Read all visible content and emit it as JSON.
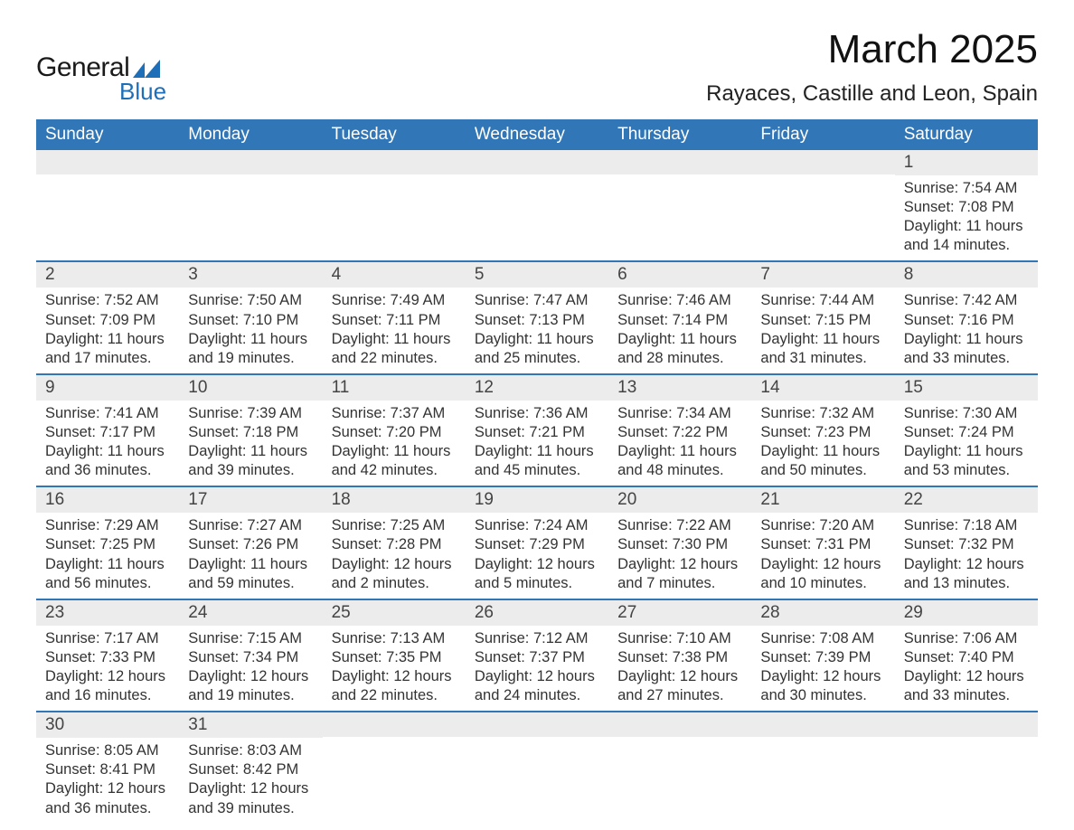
{
  "logo": {
    "text1": "General",
    "text2": "Blue",
    "shape_color": "#1e6fb8"
  },
  "title": "March 2025",
  "location": "Rayaces, Castille and Leon, Spain",
  "colors": {
    "header_bg": "#3176b7",
    "header_text": "#ffffff",
    "row_divider": "#3176b7",
    "daynum_bg": "#ececec",
    "text": "#333333",
    "background": "#ffffff"
  },
  "weekdays": [
    "Sunday",
    "Monday",
    "Tuesday",
    "Wednesday",
    "Thursday",
    "Friday",
    "Saturday"
  ],
  "weeks": [
    [
      {
        "day": "",
        "sunrise": "",
        "sunset": "",
        "daylight": ""
      },
      {
        "day": "",
        "sunrise": "",
        "sunset": "",
        "daylight": ""
      },
      {
        "day": "",
        "sunrise": "",
        "sunset": "",
        "daylight": ""
      },
      {
        "day": "",
        "sunrise": "",
        "sunset": "",
        "daylight": ""
      },
      {
        "day": "",
        "sunrise": "",
        "sunset": "",
        "daylight": ""
      },
      {
        "day": "",
        "sunrise": "",
        "sunset": "",
        "daylight": ""
      },
      {
        "day": "1",
        "sunrise": "Sunrise: 7:54 AM",
        "sunset": "Sunset: 7:08 PM",
        "daylight": "Daylight: 11 hours and 14 minutes."
      }
    ],
    [
      {
        "day": "2",
        "sunrise": "Sunrise: 7:52 AM",
        "sunset": "Sunset: 7:09 PM",
        "daylight": "Daylight: 11 hours and 17 minutes."
      },
      {
        "day": "3",
        "sunrise": "Sunrise: 7:50 AM",
        "sunset": "Sunset: 7:10 PM",
        "daylight": "Daylight: 11 hours and 19 minutes."
      },
      {
        "day": "4",
        "sunrise": "Sunrise: 7:49 AM",
        "sunset": "Sunset: 7:11 PM",
        "daylight": "Daylight: 11 hours and 22 minutes."
      },
      {
        "day": "5",
        "sunrise": "Sunrise: 7:47 AM",
        "sunset": "Sunset: 7:13 PM",
        "daylight": "Daylight: 11 hours and 25 minutes."
      },
      {
        "day": "6",
        "sunrise": "Sunrise: 7:46 AM",
        "sunset": "Sunset: 7:14 PM",
        "daylight": "Daylight: 11 hours and 28 minutes."
      },
      {
        "day": "7",
        "sunrise": "Sunrise: 7:44 AM",
        "sunset": "Sunset: 7:15 PM",
        "daylight": "Daylight: 11 hours and 31 minutes."
      },
      {
        "day": "8",
        "sunrise": "Sunrise: 7:42 AM",
        "sunset": "Sunset: 7:16 PM",
        "daylight": "Daylight: 11 hours and 33 minutes."
      }
    ],
    [
      {
        "day": "9",
        "sunrise": "Sunrise: 7:41 AM",
        "sunset": "Sunset: 7:17 PM",
        "daylight": "Daylight: 11 hours and 36 minutes."
      },
      {
        "day": "10",
        "sunrise": "Sunrise: 7:39 AM",
        "sunset": "Sunset: 7:18 PM",
        "daylight": "Daylight: 11 hours and 39 minutes."
      },
      {
        "day": "11",
        "sunrise": "Sunrise: 7:37 AM",
        "sunset": "Sunset: 7:20 PM",
        "daylight": "Daylight: 11 hours and 42 minutes."
      },
      {
        "day": "12",
        "sunrise": "Sunrise: 7:36 AM",
        "sunset": "Sunset: 7:21 PM",
        "daylight": "Daylight: 11 hours and 45 minutes."
      },
      {
        "day": "13",
        "sunrise": "Sunrise: 7:34 AM",
        "sunset": "Sunset: 7:22 PM",
        "daylight": "Daylight: 11 hours and 48 minutes."
      },
      {
        "day": "14",
        "sunrise": "Sunrise: 7:32 AM",
        "sunset": "Sunset: 7:23 PM",
        "daylight": "Daylight: 11 hours and 50 minutes."
      },
      {
        "day": "15",
        "sunrise": "Sunrise: 7:30 AM",
        "sunset": "Sunset: 7:24 PM",
        "daylight": "Daylight: 11 hours and 53 minutes."
      }
    ],
    [
      {
        "day": "16",
        "sunrise": "Sunrise: 7:29 AM",
        "sunset": "Sunset: 7:25 PM",
        "daylight": "Daylight: 11 hours and 56 minutes."
      },
      {
        "day": "17",
        "sunrise": "Sunrise: 7:27 AM",
        "sunset": "Sunset: 7:26 PM",
        "daylight": "Daylight: 11 hours and 59 minutes."
      },
      {
        "day": "18",
        "sunrise": "Sunrise: 7:25 AM",
        "sunset": "Sunset: 7:28 PM",
        "daylight": "Daylight: 12 hours and 2 minutes."
      },
      {
        "day": "19",
        "sunrise": "Sunrise: 7:24 AM",
        "sunset": "Sunset: 7:29 PM",
        "daylight": "Daylight: 12 hours and 5 minutes."
      },
      {
        "day": "20",
        "sunrise": "Sunrise: 7:22 AM",
        "sunset": "Sunset: 7:30 PM",
        "daylight": "Daylight: 12 hours and 7 minutes."
      },
      {
        "day": "21",
        "sunrise": "Sunrise: 7:20 AM",
        "sunset": "Sunset: 7:31 PM",
        "daylight": "Daylight: 12 hours and 10 minutes."
      },
      {
        "day": "22",
        "sunrise": "Sunrise: 7:18 AM",
        "sunset": "Sunset: 7:32 PM",
        "daylight": "Daylight: 12 hours and 13 minutes."
      }
    ],
    [
      {
        "day": "23",
        "sunrise": "Sunrise: 7:17 AM",
        "sunset": "Sunset: 7:33 PM",
        "daylight": "Daylight: 12 hours and 16 minutes."
      },
      {
        "day": "24",
        "sunrise": "Sunrise: 7:15 AM",
        "sunset": "Sunset: 7:34 PM",
        "daylight": "Daylight: 12 hours and 19 minutes."
      },
      {
        "day": "25",
        "sunrise": "Sunrise: 7:13 AM",
        "sunset": "Sunset: 7:35 PM",
        "daylight": "Daylight: 12 hours and 22 minutes."
      },
      {
        "day": "26",
        "sunrise": "Sunrise: 7:12 AM",
        "sunset": "Sunset: 7:37 PM",
        "daylight": "Daylight: 12 hours and 24 minutes."
      },
      {
        "day": "27",
        "sunrise": "Sunrise: 7:10 AM",
        "sunset": "Sunset: 7:38 PM",
        "daylight": "Daylight: 12 hours and 27 minutes."
      },
      {
        "day": "28",
        "sunrise": "Sunrise: 7:08 AM",
        "sunset": "Sunset: 7:39 PM",
        "daylight": "Daylight: 12 hours and 30 minutes."
      },
      {
        "day": "29",
        "sunrise": "Sunrise: 7:06 AM",
        "sunset": "Sunset: 7:40 PM",
        "daylight": "Daylight: 12 hours and 33 minutes."
      }
    ],
    [
      {
        "day": "30",
        "sunrise": "Sunrise: 8:05 AM",
        "sunset": "Sunset: 8:41 PM",
        "daylight": "Daylight: 12 hours and 36 minutes."
      },
      {
        "day": "31",
        "sunrise": "Sunrise: 8:03 AM",
        "sunset": "Sunset: 8:42 PM",
        "daylight": "Daylight: 12 hours and 39 minutes."
      },
      {
        "day": "",
        "sunrise": "",
        "sunset": "",
        "daylight": ""
      },
      {
        "day": "",
        "sunrise": "",
        "sunset": "",
        "daylight": ""
      },
      {
        "day": "",
        "sunrise": "",
        "sunset": "",
        "daylight": ""
      },
      {
        "day": "",
        "sunrise": "",
        "sunset": "",
        "daylight": ""
      },
      {
        "day": "",
        "sunrise": "",
        "sunset": "",
        "daylight": ""
      }
    ]
  ]
}
